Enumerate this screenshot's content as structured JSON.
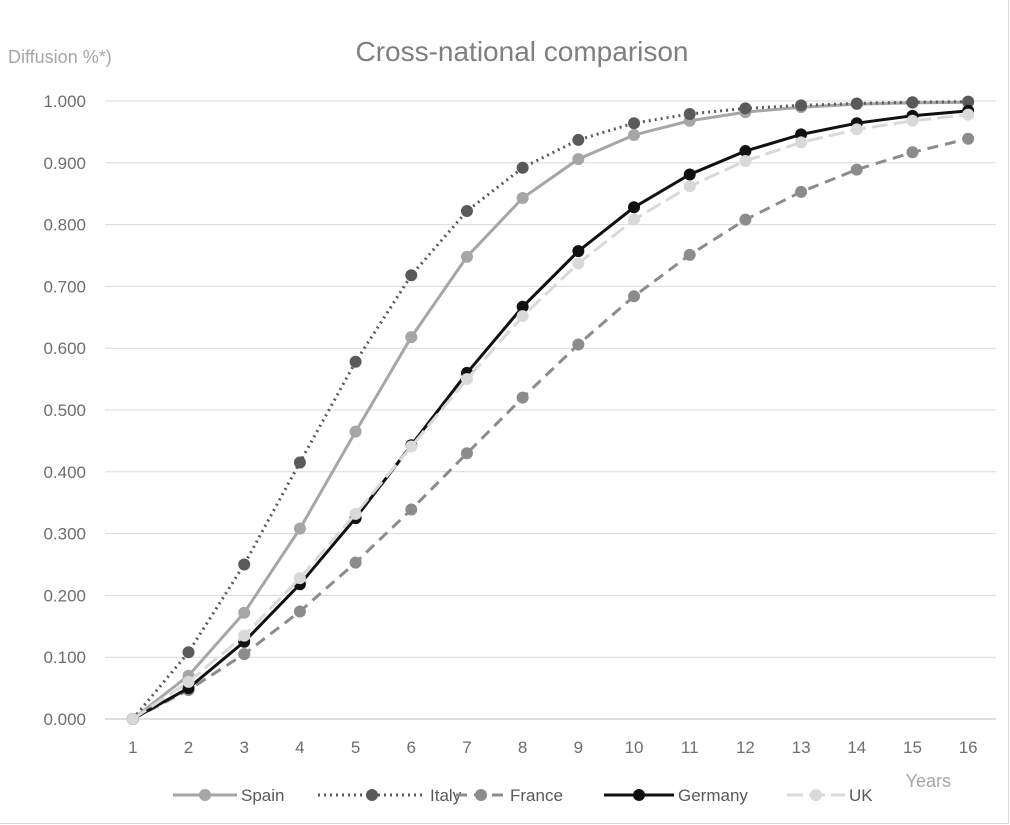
{
  "chart_data": {
    "type": "line",
    "title": "Cross-national comparison",
    "ylabel": "Diffusion %*)",
    "xlabel": "Years",
    "ylim": [
      0,
      1
    ],
    "y_ticks": [
      "0.000",
      "0.100",
      "0.200",
      "0.300",
      "0.400",
      "0.500",
      "0.600",
      "0.700",
      "0.800",
      "0.900",
      "1.000"
    ],
    "x": [
      1,
      2,
      3,
      4,
      5,
      6,
      7,
      8,
      9,
      10,
      11,
      12,
      13,
      14,
      15,
      16
    ],
    "grid": "horizontal",
    "legend_position": "bottom",
    "series": [
      {
        "name": "Spain",
        "color": "#a6a6a6",
        "dash": "solid",
        "values": [
          0.0,
          0.07,
          0.172,
          0.308,
          0.465,
          0.618,
          0.748,
          0.843,
          0.906,
          0.945,
          0.968,
          0.982,
          0.99,
          0.995,
          0.997,
          0.998
        ]
      },
      {
        "name": "Italy",
        "color": "#5a5a5a",
        "dash": "dotted",
        "values": [
          0.0,
          0.108,
          0.25,
          0.415,
          0.578,
          0.718,
          0.822,
          0.892,
          0.937,
          0.964,
          0.979,
          0.988,
          0.993,
          0.996,
          0.998,
          0.999
        ]
      },
      {
        "name": "France",
        "color": "#8c8c8c",
        "dash": "dashed",
        "values": [
          0.0,
          0.047,
          0.105,
          0.174,
          0.253,
          0.339,
          0.43,
          0.52,
          0.606,
          0.684,
          0.751,
          0.808,
          0.853,
          0.889,
          0.917,
          0.939
        ]
      },
      {
        "name": "Germany",
        "color": "#111111",
        "dash": "solid",
        "values": [
          0.0,
          0.05,
          0.125,
          0.218,
          0.325,
          0.443,
          0.56,
          0.667,
          0.757,
          0.828,
          0.881,
          0.919,
          0.946,
          0.964,
          0.976,
          0.984
        ]
      },
      {
        "name": "UK",
        "color": "#d9d9d9",
        "dash": "longdash",
        "values": [
          0.0,
          0.06,
          0.135,
          0.228,
          0.332,
          0.441,
          0.55,
          0.652,
          0.737,
          0.808,
          0.862,
          0.903,
          0.933,
          0.954,
          0.968,
          0.978
        ]
      }
    ]
  }
}
